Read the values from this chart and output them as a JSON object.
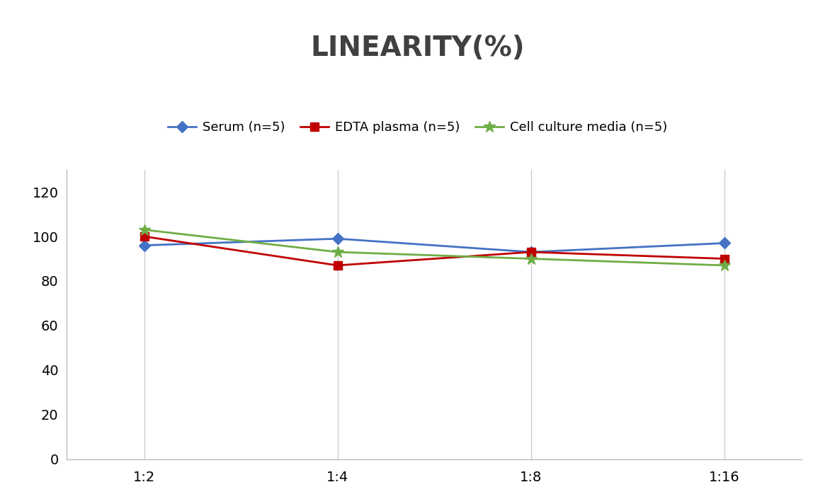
{
  "title": "LINEARITY(%)",
  "title_fontsize": 28,
  "title_fontweight": "bold",
  "title_color": "#404040",
  "x_labels": [
    "1:2",
    "1:4",
    "1:8",
    "1:16"
  ],
  "x_positions": [
    0,
    1,
    2,
    3
  ],
  "series": [
    {
      "label": "Serum (n=5)",
      "values": [
        96,
        99,
        93,
        97
      ],
      "color": "#4472C4",
      "marker": "D",
      "marker_size": 8,
      "linewidth": 2
    },
    {
      "label": "EDTA plasma (n=5)",
      "values": [
        100,
        87,
        93,
        90
      ],
      "color": "#C00000",
      "marker": "s",
      "marker_size": 8,
      "linewidth": 2
    },
    {
      "label": "Cell culture media (n=5)",
      "values": [
        103,
        93,
        90,
        87
      ],
      "color": "#70AD47",
      "marker": "*",
      "marker_size": 12,
      "linewidth": 2
    }
  ],
  "ylim": [
    0,
    130
  ],
  "yticks": [
    0,
    20,
    40,
    60,
    80,
    100,
    120
  ],
  "background_color": "#ffffff",
  "grid_color": "#cccccc",
  "legend_fontsize": 13,
  "axis_tick_fontsize": 14
}
